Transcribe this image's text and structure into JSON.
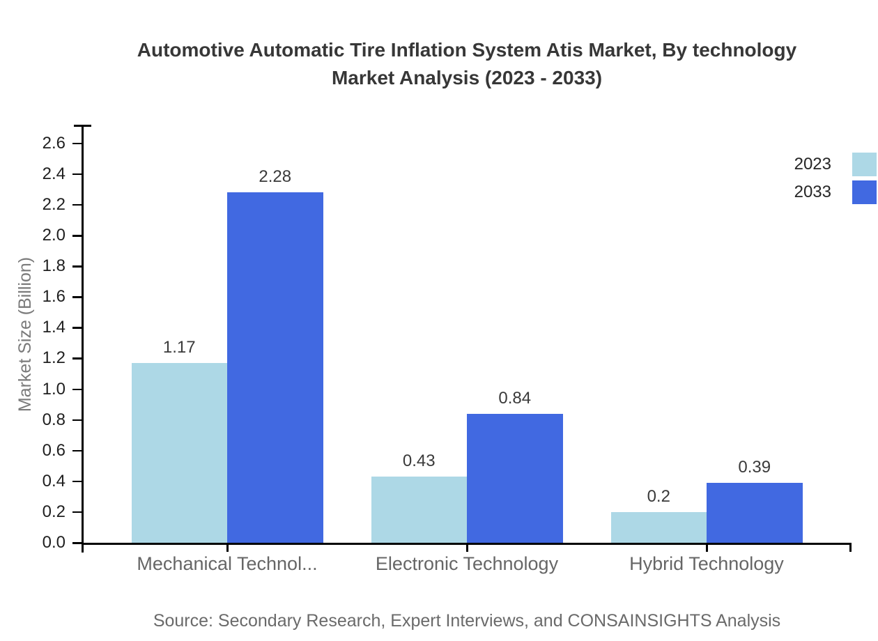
{
  "chart_data": {
    "type": "bar",
    "title": "Automotive Automatic Tire Inflation System Atis Market, By technology Market Analysis (2023 - 2033)",
    "title_lines": [
      "Automotive Automatic Tire Inflation System Atis Market, By technology",
      "Market Analysis (2023 - 2033)"
    ],
    "xlabel": "",
    "ylabel": "Market Size (Billion)",
    "categories": [
      "Mechanical Technol...",
      "Electronic Technology",
      "Hybrid Technology"
    ],
    "series": [
      {
        "name": "2023",
        "color": "#ADD8E6",
        "values": [
          1.17,
          0.43,
          0.2
        ]
      },
      {
        "name": "2033",
        "color": "#4169E1",
        "values": [
          2.28,
          0.84,
          0.39
        ]
      }
    ],
    "value_labels": [
      [
        "1.17",
        "0.43",
        "0.2"
      ],
      [
        "2.28",
        "0.84",
        "0.39"
      ]
    ],
    "yticks": [
      "0.0",
      "0.2",
      "0.4",
      "0.6",
      "0.8",
      "1.0",
      "1.2",
      "1.4",
      "1.6",
      "1.8",
      "2.0",
      "2.2",
      "2.4",
      "2.6"
    ],
    "ytick_step": 0.2,
    "ylim": [
      0,
      2.72
    ],
    "grid": false,
    "legend_position": "top-right",
    "bar_value_labels": true,
    "source": "Source: Secondary Research, Expert Interviews, and CONSAINSIGHTS Analysis"
  },
  "colors": {
    "background": "#ffffff",
    "axis": "#000000",
    "title": "#373737",
    "tick_label": "#1f1f1f",
    "value_label": "#3a3a3a",
    "category_label": "#666666",
    "legend_label": "#262626",
    "axis_title": "#7a7a7a",
    "source": "#6a6a6a"
  }
}
